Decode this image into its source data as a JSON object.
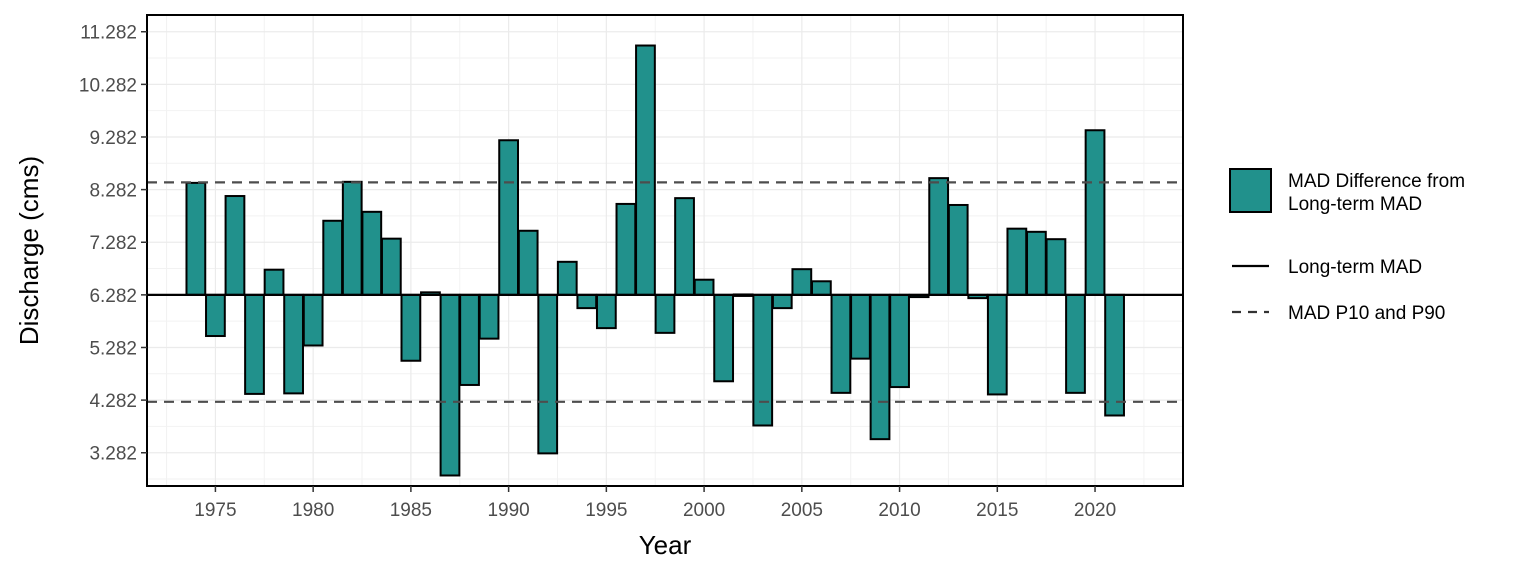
{
  "chart_data": {
    "type": "bar",
    "xlabel": "Year",
    "ylabel": "Discharge (cms)",
    "baseline": 6.282,
    "reference_lines": {
      "mad": 6.282,
      "p10": 4.25,
      "p90": 8.42
    },
    "xlim": [
      1971.5,
      2024.5
    ],
    "ylim": [
      2.65,
      11.6
    ],
    "x_ticks": [
      1975,
      1980,
      1985,
      1990,
      1995,
      2000,
      2005,
      2010,
      2015,
      2020
    ],
    "y_ticks": [
      3.282,
      4.282,
      5.282,
      6.282,
      7.282,
      8.282,
      9.282,
      10.282,
      11.282
    ],
    "y_tick_labels": [
      "3.282",
      "4.282",
      "5.282",
      "6.282",
      "7.282",
      "8.282",
      "9.282",
      "10.282",
      "11.282"
    ],
    "x": [
      1974,
      1975,
      1976,
      1977,
      1978,
      1979,
      1980,
      1981,
      1982,
      1983,
      1984,
      1985,
      1986,
      1987,
      1988,
      1989,
      1990,
      1991,
      1992,
      1993,
      1994,
      1995,
      1996,
      1997,
      1998,
      1999,
      2000,
      2001,
      2002,
      2003,
      2004,
      2005,
      2006,
      2007,
      2008,
      2009,
      2010,
      2011,
      2012,
      2013,
      2014,
      2015,
      2016,
      2017,
      2018,
      2019,
      2020,
      2021
    ],
    "values": [
      8.41,
      5.5,
      8.16,
      4.4,
      6.76,
      4.41,
      5.32,
      7.69,
      8.43,
      7.86,
      7.35,
      5.03,
      6.33,
      2.85,
      4.57,
      5.45,
      9.22,
      7.5,
      3.27,
      6.91,
      6.03,
      5.65,
      8.01,
      11.02,
      5.56,
      8.12,
      6.57,
      4.64,
      6.29,
      3.8,
      6.03,
      6.77,
      6.54,
      4.42,
      5.07,
      3.54,
      4.53,
      6.24,
      8.5,
      7.99,
      6.22,
      4.39,
      7.54,
      7.48,
      7.34,
      4.42,
      9.41,
      3.99
    ],
    "series": [
      {
        "name": "MAD Difference from Long-term MAD",
        "color": "#21918c",
        "edge_color": "#000000"
      }
    ],
    "legend": {
      "placement": "right",
      "entries": [
        {
          "label_lines": [
            "MAD Difference from",
            "Long-term MAD"
          ],
          "style": "bar"
        },
        {
          "label_lines": [
            "Long-term MAD"
          ],
          "style": "solid-line"
        },
        {
          "label_lines": [
            "MAD P10 and P90"
          ],
          "style": "dashed-line"
        }
      ]
    },
    "grid": true
  }
}
